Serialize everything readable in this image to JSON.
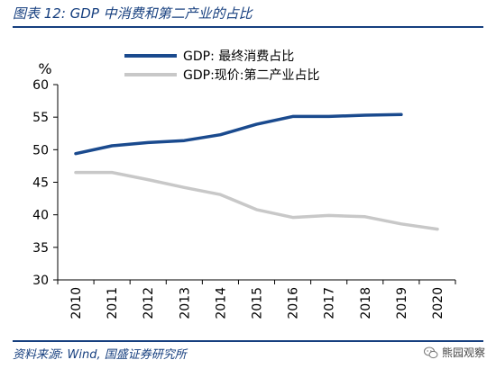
{
  "figure": {
    "title": "图表 12:  GDP 中消费和第二产业的占比",
    "source": "资料来源:  Wind,  国盛证券研究所",
    "watermark": "熊园观察"
  },
  "colors": {
    "header_rule": "#163f7f",
    "series_consumption": "#1a4a8e",
    "series_industry": "#c8c8c8"
  },
  "chart_data": {
    "type": "line",
    "title": "",
    "xlabel": "",
    "ylabel": "%",
    "ylim": [
      30,
      60
    ],
    "yticks": [
      30,
      35,
      40,
      45,
      50,
      55,
      60
    ],
    "grid": false,
    "legend_position": "top",
    "x": [
      "2010",
      "2011",
      "2012",
      "2013",
      "2014",
      "2015",
      "2016",
      "2017",
      "2018",
      "2019",
      "2020"
    ],
    "series": [
      {
        "name": "GDP:  最终消费占比",
        "color": "#1a4a8e",
        "values": [
          49.4,
          50.6,
          51.1,
          51.4,
          52.3,
          53.9,
          55.1,
          55.1,
          55.3,
          55.4,
          null
        ]
      },
      {
        "name": "GDP:现价:第二产业占比",
        "color": "#c8c8c8",
        "values": [
          46.5,
          46.5,
          45.4,
          44.2,
          43.1,
          40.8,
          39.6,
          39.9,
          39.7,
          38.6,
          37.8
        ]
      }
    ]
  }
}
